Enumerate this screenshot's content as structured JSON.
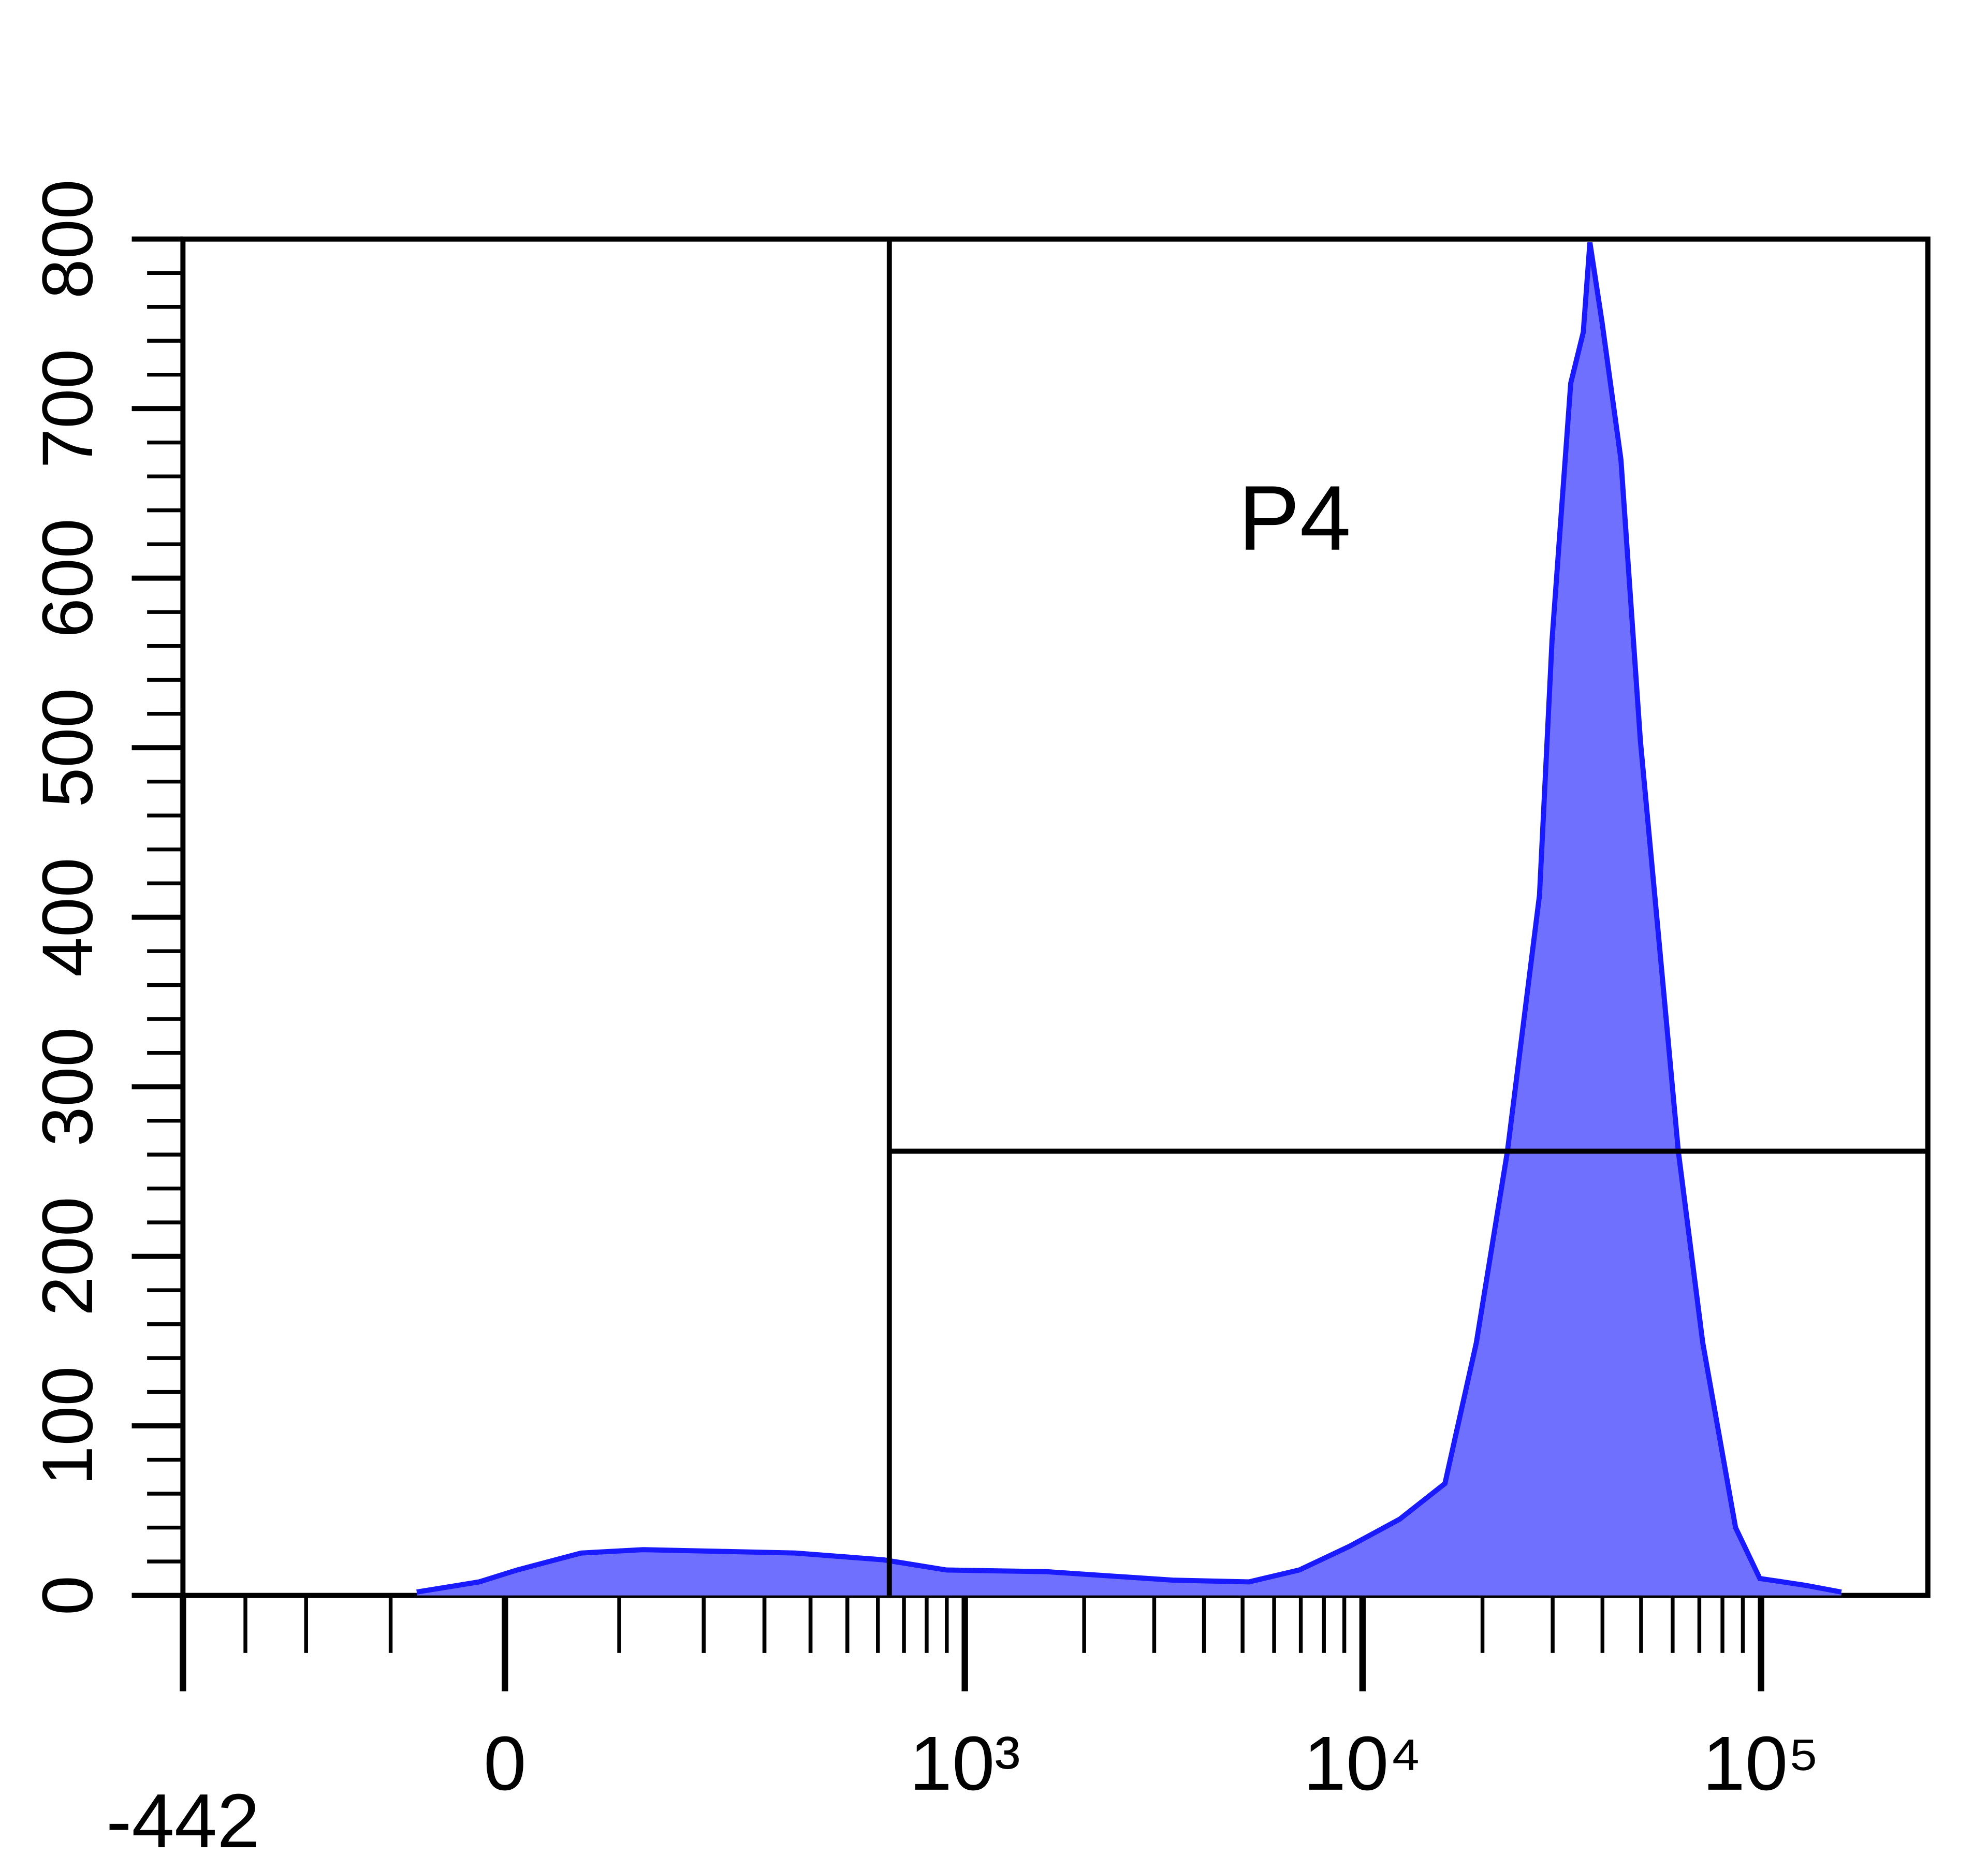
{
  "chart_data": {
    "type": "area",
    "x": [
      -75,
      -21,
      10,
      64,
      125,
      223,
      364,
      620,
      898,
      1610,
      3340,
      5190,
      6940,
      9280,
      12400,
      16100,
      19300,
      23100,
      27800,
      29900,
      33300,
      35800,
      37200,
      39900,
      44500,
      49800,
      55600,
      62000,
      71400,
      86300,
      99300,
      129000,
      159000
    ],
    "values": [
      2,
      8,
      15,
      25,
      27,
      26,
      25,
      21,
      15,
      14,
      9,
      8,
      15,
      29,
      45,
      66,
      149,
      262,
      413,
      564,
      715,
      745,
      798,
      751,
      670,
      504,
      383,
      262,
      149,
      40,
      10,
      6,
      2
    ],
    "color": "#7070ff",
    "line_color": "#1a1aff",
    "xlim": [
      -442,
      262144
    ],
    "xticks": [
      -442,
      0,
      {
        "value": 1000,
        "label": "10³"
      },
      {
        "value": 10000,
        "label": "10⁴"
      },
      {
        "value": 100000,
        "label": "10⁵"
      }
    ],
    "ylim": [
      0,
      800
    ],
    "yticks": [
      0,
      100,
      200,
      300,
      400,
      500,
      600,
      700,
      800
    ],
    "gate": {
      "label": "P4",
      "x": 642,
      "y": 262
    }
  }
}
